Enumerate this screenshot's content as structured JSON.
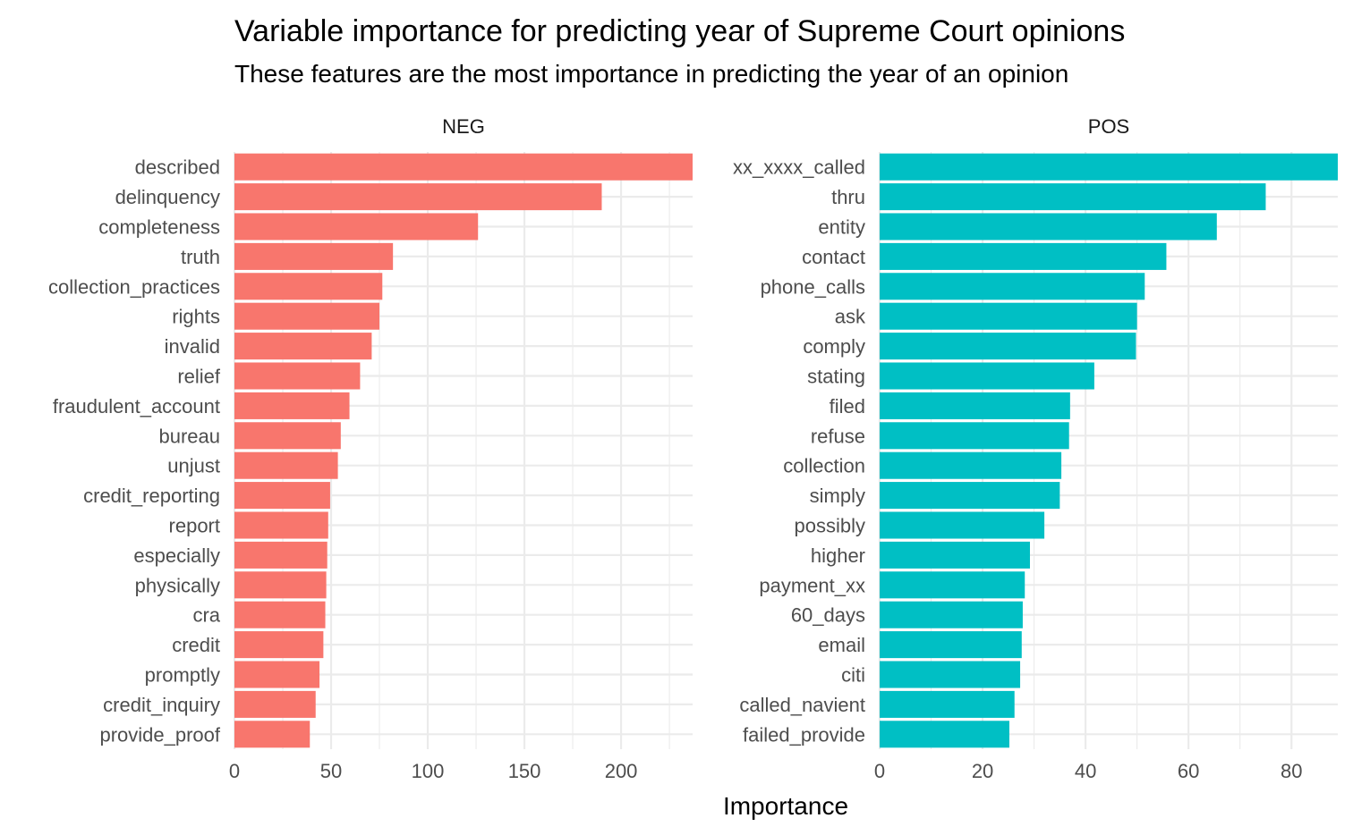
{
  "chart_data": {
    "type": "bar",
    "orientation": "horizontal",
    "title": "Variable importance for predicting year of Supreme Court opinions",
    "subtitle": "These features are the most importance in predicting the year of an opinion",
    "xlabel": "Importance",
    "ylabel": "",
    "grid": true,
    "facets": [
      {
        "name": "NEG",
        "color": "#F8766D",
        "xlim": [
          0,
          237
        ],
        "ticks": [
          0,
          50,
          100,
          150,
          200
        ],
        "categories": [
          "described",
          "delinquency",
          "completeness",
          "truth",
          "collection_practices",
          "rights",
          "invalid",
          "relief",
          "fraudulent_account",
          "bureau",
          "unjust",
          "credit_reporting",
          "report",
          "especially",
          "physically",
          "cra",
          "credit",
          "promptly",
          "credit_inquiry",
          "provide_proof"
        ],
        "values": [
          237,
          190,
          126,
          82,
          76.5,
          75,
          71,
          65,
          59.5,
          55,
          53.5,
          49.5,
          48.5,
          48,
          47.5,
          47,
          46,
          44,
          42,
          39
        ]
      },
      {
        "name": "POS",
        "color": "#00BFC4",
        "xlim": [
          0,
          89
        ],
        "ticks": [
          0,
          20,
          40,
          60,
          80
        ],
        "categories": [
          "xx_xxxx_called",
          "thru",
          "entity",
          "contact",
          "phone_calls",
          "ask",
          "comply",
          "stating",
          "filed",
          "refuse",
          "collection",
          "simply",
          "possibly",
          "higher",
          "payment_xx",
          "60_days",
          "email",
          "citi",
          "called_navient",
          "failed_provide"
        ],
        "values": [
          89,
          75,
          65.5,
          55.7,
          51.5,
          50,
          49.8,
          41.7,
          37,
          36.8,
          35.3,
          35,
          32,
          29.2,
          28.2,
          27.8,
          27.6,
          27.3,
          26.2,
          25.2
        ]
      }
    ]
  }
}
